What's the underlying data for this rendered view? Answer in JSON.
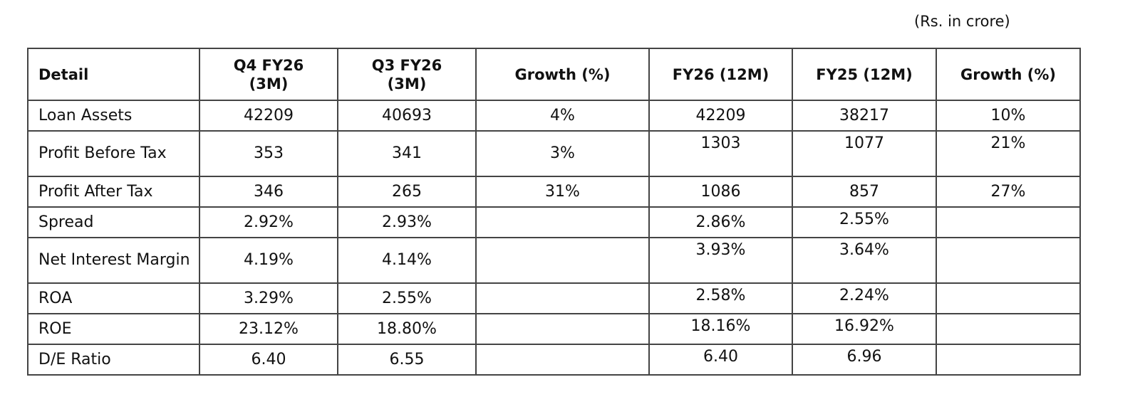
{
  "unit_note": "(Rs. in crore)",
  "headers": [
    "Detail",
    "Q4 FY26\n(3M)",
    "Q3 FY26\n(3M)",
    "Growth (%)",
    "FY26 (12M)",
    "FY25 (12M)",
    "Growth (%)"
  ],
  "rows": [
    [
      "Loan Assets",
      "42209",
      "40693",
      "4%",
      "42209",
      "38217",
      "10%"
    ],
    [
      "Profit Before Tax",
      "353",
      "341",
      "3%",
      "1303",
      "1077",
      "21%"
    ],
    [
      "Profit After Tax",
      "346",
      "265",
      "31%",
      "1086",
      "857",
      "27%"
    ],
    [
      "Spread",
      "2.92%",
      "2.93%",
      "",
      "2.86%",
      "2.55%",
      ""
    ],
    [
      "Net Interest Margin",
      "4.19%",
      "4.14%",
      "",
      "3.93%",
      "3.64%",
      ""
    ],
    [
      "ROA",
      "3.29%",
      "2.55%",
      "",
      "2.58%",
      "2.24%",
      ""
    ],
    [
      "ROE",
      "23.12%",
      "18.80%",
      "",
      "18.16%",
      "16.92%",
      ""
    ],
    [
      "D/E Ratio",
      "6.40",
      "6.55",
      "",
      "6.40",
      "6.96",
      ""
    ]
  ]
}
